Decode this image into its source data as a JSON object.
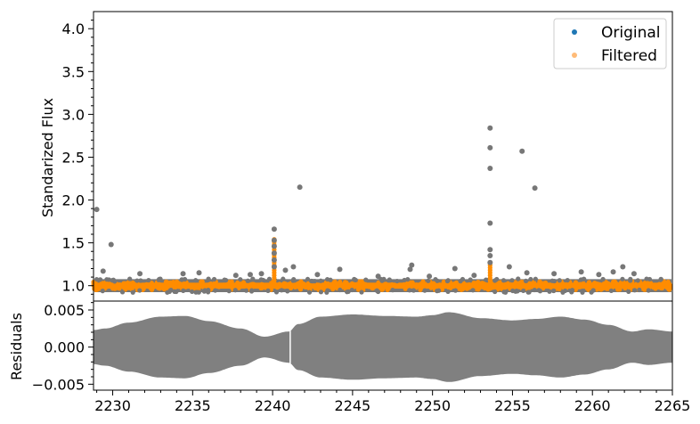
{
  "chart_data": [
    {
      "type": "scatter",
      "title": "",
      "xlabel": "",
      "ylabel": "Standarized Flux",
      "xlim": [
        2228.8,
        2265.0
      ],
      "ylim": [
        0.82,
        4.2
      ],
      "yticks": [
        1.0,
        1.5,
        2.0,
        2.5,
        3.0,
        3.5,
        4.0
      ],
      "ytick_labels": [
        "1.0",
        "1.5",
        "2.0",
        "2.5",
        "3.0",
        "3.5",
        "4.0"
      ],
      "legend": {
        "placement": "top-right",
        "entries": [
          {
            "label": "Original",
            "color": "#1f77b4"
          },
          {
            "label": "Filtered",
            "color": "#ffbb78"
          }
        ]
      },
      "series": [
        {
          "name": "Original",
          "color": "#777777",
          "baseline": 1.0,
          "band_half_width": 0.04,
          "outliers": [
            [
              2229.0,
              1.89
            ],
            [
              2229.9,
              1.48
            ],
            [
              2241.7,
              2.15
            ],
            [
              2240.1,
              1.66
            ],
            [
              2240.1,
              1.53
            ],
            [
              2240.1,
              1.46
            ],
            [
              2240.1,
              1.38
            ],
            [
              2240.1,
              1.3
            ],
            [
              2240.1,
              1.22
            ],
            [
              2253.6,
              2.84
            ],
            [
              2253.6,
              2.61
            ],
            [
              2253.6,
              2.37
            ],
            [
              2253.6,
              1.73
            ],
            [
              2253.6,
              1.42
            ],
            [
              2253.6,
              1.35
            ],
            [
              2253.6,
              1.27
            ],
            [
              2255.6,
              2.57
            ],
            [
              2256.4,
              2.14
            ],
            [
              2254.8,
              1.22
            ],
            [
              2248.7,
              1.24
            ],
            [
              2248.6,
              1.19
            ],
            [
              2244.2,
              1.19
            ],
            [
              2251.4,
              1.2
            ],
            [
              2261.9,
              1.22
            ],
            [
              2229.4,
              1.17
            ],
            [
              2231.7,
              1.14
            ],
            [
              2234.4,
              1.14
            ],
            [
              2235.4,
              1.15
            ],
            [
              2237.7,
              1.12
            ],
            [
              2238.6,
              1.13
            ],
            [
              2239.3,
              1.14
            ],
            [
              2240.8,
              1.18
            ],
            [
              2241.3,
              1.22
            ],
            [
              2242.8,
              1.13
            ],
            [
              2246.6,
              1.11
            ],
            [
              2249.8,
              1.11
            ],
            [
              2252.6,
              1.12
            ],
            [
              2255.9,
              1.15
            ],
            [
              2257.6,
              1.14
            ],
            [
              2259.3,
              1.16
            ],
            [
              2260.4,
              1.13
            ],
            [
              2261.3,
              1.16
            ],
            [
              2262.6,
              1.14
            ]
          ]
        },
        {
          "name": "Filtered",
          "color": "#ff8c00",
          "baseline": 1.0,
          "band_half_width": 0.035
        }
      ]
    },
    {
      "type": "area",
      "title": "",
      "xlabel": "",
      "ylabel": "Residuals",
      "xlim": [
        2228.8,
        2265.0
      ],
      "ylim": [
        -0.0058,
        0.0062
      ],
      "xticks": [
        2230,
        2235,
        2240,
        2245,
        2250,
        2255,
        2260,
        2265
      ],
      "xtick_labels": [
        "2230",
        "2235",
        "2240",
        "2245",
        "2250",
        "2255",
        "2260",
        "2265"
      ],
      "yticks": [
        -0.005,
        0.0,
        0.005
      ],
      "ytick_labels": [
        "−0.005",
        "0.000",
        "0.005"
      ],
      "series": [
        {
          "name": "",
          "color": "#808080",
          "envelope_x": [
            2228.8,
            2229.5,
            2231,
            2233,
            2234.5,
            2236,
            2238,
            2239.5,
            2241,
            2241.6,
            2243,
            2245,
            2247,
            2249,
            2250,
            2251,
            2253,
            2255,
            2256.5,
            2258,
            2259.5,
            2261,
            2262.5,
            2263.5,
            2265
          ],
          "envelope_amplitude": [
            0.0023,
            0.0025,
            0.0033,
            0.0041,
            0.0042,
            0.0035,
            0.0025,
            0.0014,
            0.0021,
            0.0031,
            0.0041,
            0.0044,
            0.0042,
            0.0041,
            0.0043,
            0.0047,
            0.0039,
            0.0036,
            0.0038,
            0.0041,
            0.0037,
            0.003,
            0.0021,
            0.0024,
            0.0021
          ]
        }
      ]
    }
  ]
}
